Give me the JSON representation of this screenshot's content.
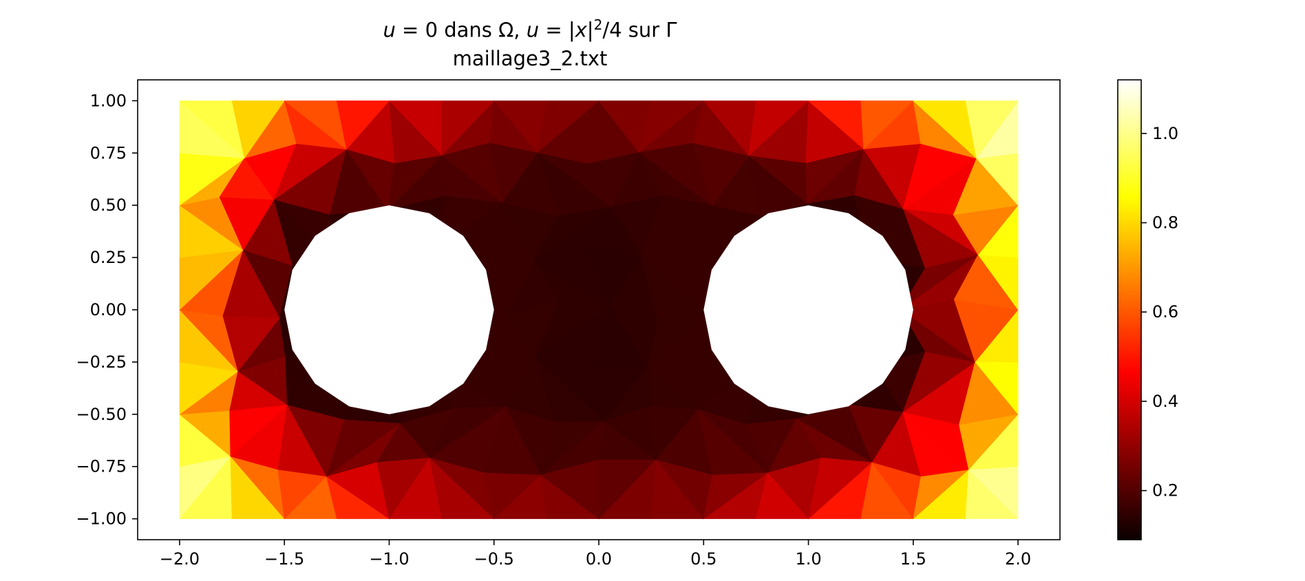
{
  "chart_data": {
    "type": "heatmap",
    "title": {
      "var1": "u",
      "eq1": " = 0 dans Ω, ",
      "var2": "u",
      "eq2": " = |",
      "var3": "x",
      "eq3": "|",
      "sup": "2",
      "eq4": "/4 sur Γ"
    },
    "subtitle": "maillage3_2.txt",
    "xlim": [
      -2.2,
      2.2
    ],
    "ylim": [
      -1.1,
      1.1
    ],
    "domain": {
      "x": [
        -2.0,
        2.0
      ],
      "y": [
        -1.0,
        1.0
      ]
    },
    "holes": [
      {
        "center": [
          -1.0,
          0.0
        ],
        "radius": 0.5
      },
      {
        "center": [
          1.0,
          0.0
        ],
        "radius": 0.5
      }
    ],
    "x_ticks": [
      -2.0,
      -1.5,
      -1.0,
      -0.5,
      0.0,
      0.5,
      1.0,
      1.5,
      2.0
    ],
    "x_tick_labels": [
      "−2.0",
      "−1.5",
      "−1.0",
      "−0.5",
      "0.0",
      "0.5",
      "1.0",
      "1.5",
      "2.0"
    ],
    "y_ticks": [
      1.0,
      0.75,
      0.5,
      0.25,
      0.0,
      -0.25,
      -0.5,
      -0.75,
      -1.0
    ],
    "y_tick_labels": [
      "1.00",
      "0.75",
      "0.50",
      "0.25",
      "0.00",
      "−0.25",
      "−0.50",
      "−0.75",
      "−1.00"
    ],
    "colorbar": {
      "colormap": "hot",
      "range": [
        0.09,
        1.12
      ],
      "ticks": [
        1.0,
        0.8,
        0.6,
        0.4,
        0.2
      ],
      "tick_labels": [
        "1.0",
        "0.8",
        "0.6",
        "0.4",
        "0.2"
      ]
    },
    "field": "u(x,y) interpolated on triangular mesh; boundary value |x|²/4 on Γ",
    "grid": false
  }
}
